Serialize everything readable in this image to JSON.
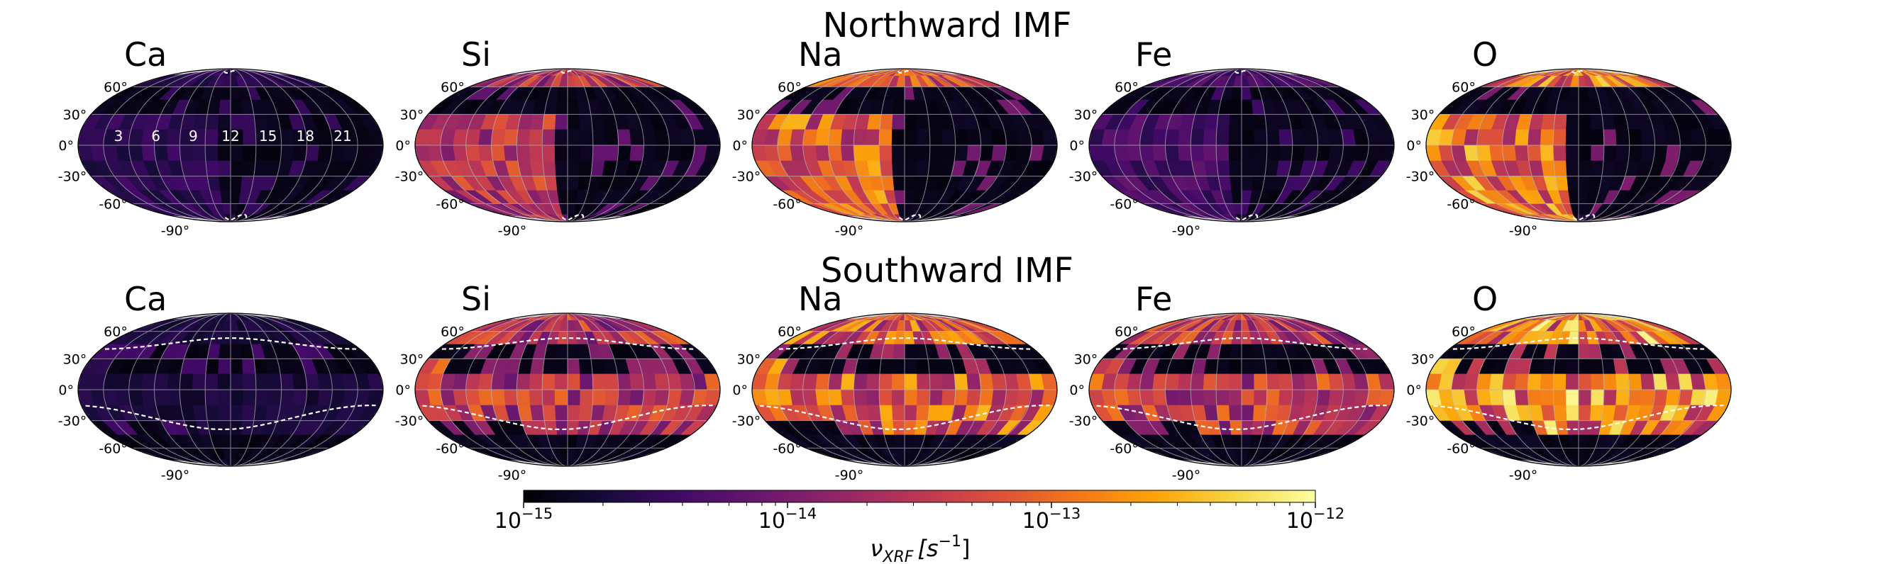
{
  "rows": [
    {
      "title": "Northward IMF",
      "boundary": "polar"
    },
    {
      "title": "Southward IMF",
      "boundary": "equatorial"
    }
  ],
  "elements": [
    "Ca",
    "Si",
    "Na",
    "Fe",
    "O"
  ],
  "axes": {
    "lat_ticks": [
      "60°",
      "30°",
      "0°",
      "-30°",
      "-60°"
    ],
    "lon_tick": "-90°",
    "lt_labels": [
      "3",
      "6",
      "9",
      "12",
      "15",
      "18",
      "21"
    ]
  },
  "colorbar": {
    "label": "ν_XRF [s⁻¹]",
    "label_main": "ν",
    "label_sub": "XRF",
    "label_unit": "[s",
    "label_exp": "−1",
    "label_close": "]",
    "scale": "log",
    "range": [
      1e-15,
      1e-12
    ],
    "ticks": [
      {
        "base": "10",
        "exp": "−15",
        "value": 1e-15
      },
      {
        "base": "10",
        "exp": "−14",
        "value": 1e-14
      },
      {
        "base": "10",
        "exp": "−13",
        "value": 1e-13
      },
      {
        "base": "10",
        "exp": "−12",
        "value": 1e-12
      }
    ],
    "colormap": "inferno"
  },
  "chart_data": {
    "type": "heatmap",
    "projection": "mollweide",
    "colormap": "inferno",
    "scale": "log",
    "vmin": 1e-15,
    "vmax": 1e-12,
    "quantity": "ν_XRF [s⁻¹]",
    "panels": [
      {
        "row": "Northward IMF",
        "element": "Ca",
        "level": 0.18
      },
      {
        "row": "Northward IMF",
        "element": "Si",
        "level": 0.55
      },
      {
        "row": "Northward IMF",
        "element": "Na",
        "level": 0.72
      },
      {
        "row": "Northward IMF",
        "element": "Fe",
        "level": 0.25
      },
      {
        "row": "Northward IMF",
        "element": "O",
        "level": 0.78
      },
      {
        "row": "Southward IMF",
        "element": "Ca",
        "level": 0.13
      },
      {
        "row": "Southward IMF",
        "element": "Si",
        "level": 0.58
      },
      {
        "row": "Southward IMF",
        "element": "Na",
        "level": 0.73
      },
      {
        "row": "Southward IMF",
        "element": "Fe",
        "level": 0.6
      },
      {
        "row": "Southward IMF",
        "element": "O",
        "level": 0.85
      }
    ]
  }
}
